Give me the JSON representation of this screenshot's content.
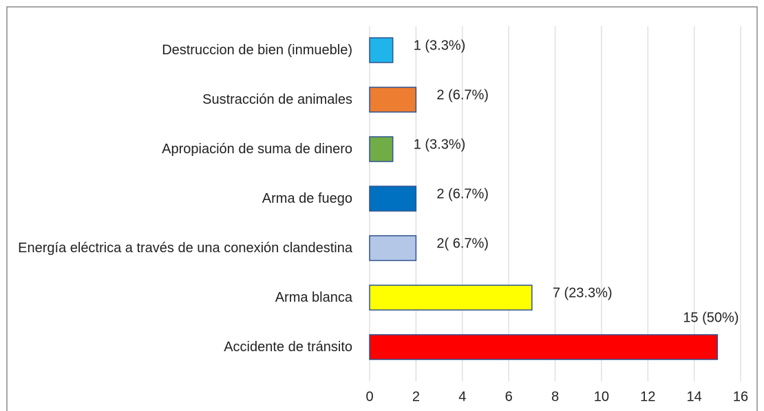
{
  "chart_data": {
    "type": "bar",
    "orientation": "horizontal",
    "categories": [
      "Destruccion de bien (inmueble)",
      "Sustracción de animales",
      "Apropiación de suma de dinero",
      "Arma de fuego",
      "Energía eléctrica a través de una conexión clandestina",
      "Arma blanca",
      "Accidente de tránsito"
    ],
    "values": [
      1,
      2,
      1,
      2,
      2,
      7,
      15
    ],
    "value_labels": [
      "1 (3.3%)",
      "2 (6.7%)",
      "1 (3.3%)",
      "2 (6.7%)",
      "2( 6.7%)",
      "7 (23.3%)",
      "15 (50%)"
    ],
    "colors": [
      "#1fb4ea",
      "#ed7d31",
      "#70ad47",
      "#0070c0",
      "#b4c7e7",
      "#ffff00",
      "#ff0000"
    ],
    "xlim": [
      0,
      16
    ],
    "xticks": [
      0,
      2,
      4,
      6,
      8,
      10,
      12,
      14,
      16
    ],
    "grid": true
  }
}
